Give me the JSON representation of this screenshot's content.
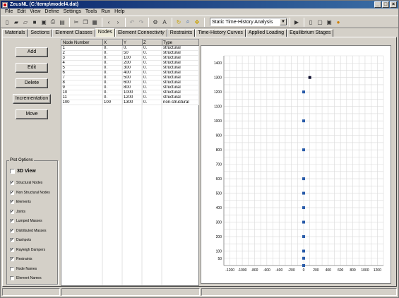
{
  "window": {
    "title": "ZeusNL  (C:\\temp\\model4.dat)",
    "controls": [
      "_",
      "□",
      "×"
    ]
  },
  "menu": [
    "File",
    "Edit",
    "View",
    "Define",
    "Settings",
    "Tools",
    "Run",
    "Help"
  ],
  "toolbar": {
    "analysis_type": "Static Time-History Analysis",
    "icons": [
      "new-icon",
      "open-icon",
      "open-folder-icon",
      "save-icon",
      "save-as-icon",
      "print-icon",
      "print-preview-icon",
      "cut-icon",
      "copy-icon",
      "paste-icon",
      "back-icon",
      "forward-icon",
      "undo-icon",
      "redo-icon",
      "settings-icon",
      "font-icon",
      "refresh-icon",
      "zoom-icon",
      "pan-icon",
      "run-icon",
      "results-icon",
      "fit-icon",
      "frame-icon",
      "db-icon"
    ]
  },
  "tabs": [
    "Materials",
    "Sections",
    "Element Classes",
    "Nodes",
    "Element Connectivity",
    "Restraints",
    "Time-History Curves",
    "Applied Loading",
    "Equilibrium Stages"
  ],
  "active_tab": "Nodes",
  "buttons": {
    "add": "Add",
    "edit": "Edit",
    "delete": "Delete",
    "incrementation": "Incrementation",
    "move": "Move"
  },
  "plot_options": {
    "title": "Plot Options",
    "view3d": {
      "label": "3D View",
      "checked": false
    },
    "items": [
      {
        "label": "Structural Nodes",
        "checked": true
      },
      {
        "label": "Non Structural Nodes",
        "checked": true
      },
      {
        "label": "Elements",
        "checked": true
      },
      {
        "label": "Joints",
        "checked": true
      },
      {
        "label": "Lumped Masses",
        "checked": true
      },
      {
        "label": "Distributed Masses",
        "checked": true
      },
      {
        "label": "Dashpots",
        "checked": true
      },
      {
        "label": "Rayleigh Dampers",
        "checked": true
      },
      {
        "label": "Restraints",
        "checked": true
      },
      {
        "label": "Node Names",
        "checked": false
      },
      {
        "label": "Element Names",
        "checked": false
      }
    ]
  },
  "nodes_table": {
    "columns": [
      "Node Number",
      "X",
      "Y",
      "Z",
      "Type"
    ],
    "rows": [
      [
        "1",
        "0.",
        "0.",
        "0.",
        "structural"
      ],
      [
        "2",
        "0.",
        "50",
        "0.",
        "structural"
      ],
      [
        "3",
        "0.",
        "100",
        "0.",
        "structural"
      ],
      [
        "4",
        "0.",
        "200",
        "0.",
        "structural"
      ],
      [
        "5",
        "0.",
        "300",
        "0.",
        "structural"
      ],
      [
        "6",
        "0.",
        "400",
        "0.",
        "structural"
      ],
      [
        "7",
        "0.",
        "500",
        "0.",
        "structural"
      ],
      [
        "8",
        "0.",
        "600",
        "0.",
        "structural"
      ],
      [
        "9",
        "0.",
        "800",
        "0.",
        "structural"
      ],
      [
        "10",
        "0.",
        "1000",
        "0.",
        "structural"
      ],
      [
        "11",
        "0.",
        "1200",
        "0.",
        "structural"
      ],
      [
        "100",
        "100",
        "1300",
        "0.",
        "non-structural"
      ]
    ]
  },
  "chart_data": {
    "type": "scatter",
    "xlim": [
      -1300,
      1300
    ],
    "ylim": [
      0,
      1450
    ],
    "x_ticks": [
      -1200,
      -1000,
      -800,
      -600,
      -400,
      -200,
      0,
      200,
      400,
      600,
      800,
      1000,
      1200
    ],
    "y_ticks": [
      50,
      100,
      200,
      300,
      400,
      500,
      600,
      700,
      800,
      900,
      1000,
      1100,
      1200,
      1300,
      1400
    ],
    "grid": true,
    "series": [
      {
        "points": [
          [
            0,
            0
          ],
          [
            0,
            50
          ],
          [
            0,
            100
          ],
          [
            0,
            200
          ],
          [
            0,
            300
          ],
          [
            0,
            400
          ],
          [
            0,
            500
          ],
          [
            0,
            600
          ],
          [
            0,
            800
          ],
          [
            0,
            1000
          ],
          [
            0,
            1200
          ]
        ],
        "color": "#2a5caa"
      },
      {
        "points": [
          [
            100,
            1300
          ]
        ],
        "color": "#101030"
      }
    ]
  }
}
